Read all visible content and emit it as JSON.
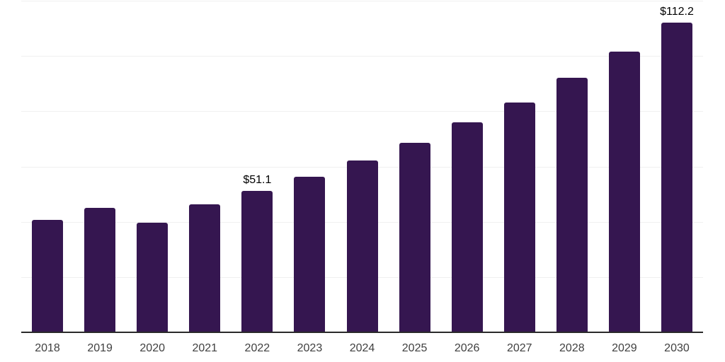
{
  "chart_data": {
    "type": "bar",
    "categories": [
      "2018",
      "2019",
      "2020",
      "2021",
      "2022",
      "2023",
      "2024",
      "2025",
      "2026",
      "2027",
      "2028",
      "2029",
      "2030"
    ],
    "values": [
      40.6,
      45.0,
      39.6,
      46.3,
      51.1,
      56.2,
      62.1,
      68.5,
      75.9,
      83.1,
      92.0,
      101.5,
      112.2
    ],
    "annotations": [
      {
        "index": 4,
        "text": "$51.1"
      },
      {
        "index": 12,
        "text": "$112.2"
      }
    ],
    "xlabel": "",
    "ylabel": "",
    "ylim": [
      0,
      120
    ],
    "gridline_step": 20,
    "grid": "horizontal-only",
    "legend_position": "none",
    "colors": {
      "bar": "#351650",
      "gridline": "#f0f0f0",
      "axis": "#2a2a2a",
      "tick_label": "#404040",
      "data_label": "#000000",
      "background": "#ffffff"
    }
  }
}
